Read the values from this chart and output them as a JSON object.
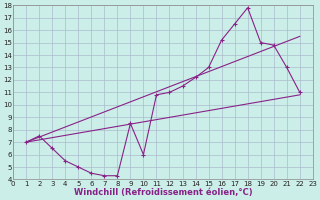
{
  "background_color": "#cceee8",
  "grid_color": "#aabbcc",
  "line_color": "#882288",
  "xlabel": "Windchill (Refroidissement éolien,°C)",
  "xlim": [
    0,
    23
  ],
  "ylim": [
    4,
    18
  ],
  "xticks": [
    0,
    1,
    2,
    3,
    4,
    5,
    6,
    7,
    8,
    9,
    10,
    11,
    12,
    13,
    14,
    15,
    16,
    17,
    18,
    19,
    20,
    21,
    22,
    23
  ],
  "yticks": [
    4,
    5,
    6,
    7,
    8,
    9,
    10,
    11,
    12,
    13,
    14,
    15,
    16,
    17,
    18
  ],
  "curve1_x": [
    1,
    2,
    3,
    4,
    5,
    6,
    7,
    8,
    9,
    10,
    11,
    12,
    13,
    14,
    15,
    16,
    17,
    18,
    19,
    20,
    21,
    22
  ],
  "curve1_y": [
    7.0,
    7.5,
    6.5,
    5.5,
    5.0,
    4.5,
    4.3,
    4.3,
    8.5,
    6.0,
    10.8,
    11.0,
    11.5,
    12.2,
    13.0,
    15.2,
    16.5,
    17.8,
    15.0,
    14.8,
    13.0,
    11.0
  ],
  "curve2_x": [
    1,
    22
  ],
  "curve2_y": [
    7.0,
    15.5
  ],
  "curve3_x": [
    1,
    22
  ],
  "curve3_y": [
    7.0,
    10.8
  ],
  "tick_fontsize": 5.0,
  "label_fontsize": 6.0
}
